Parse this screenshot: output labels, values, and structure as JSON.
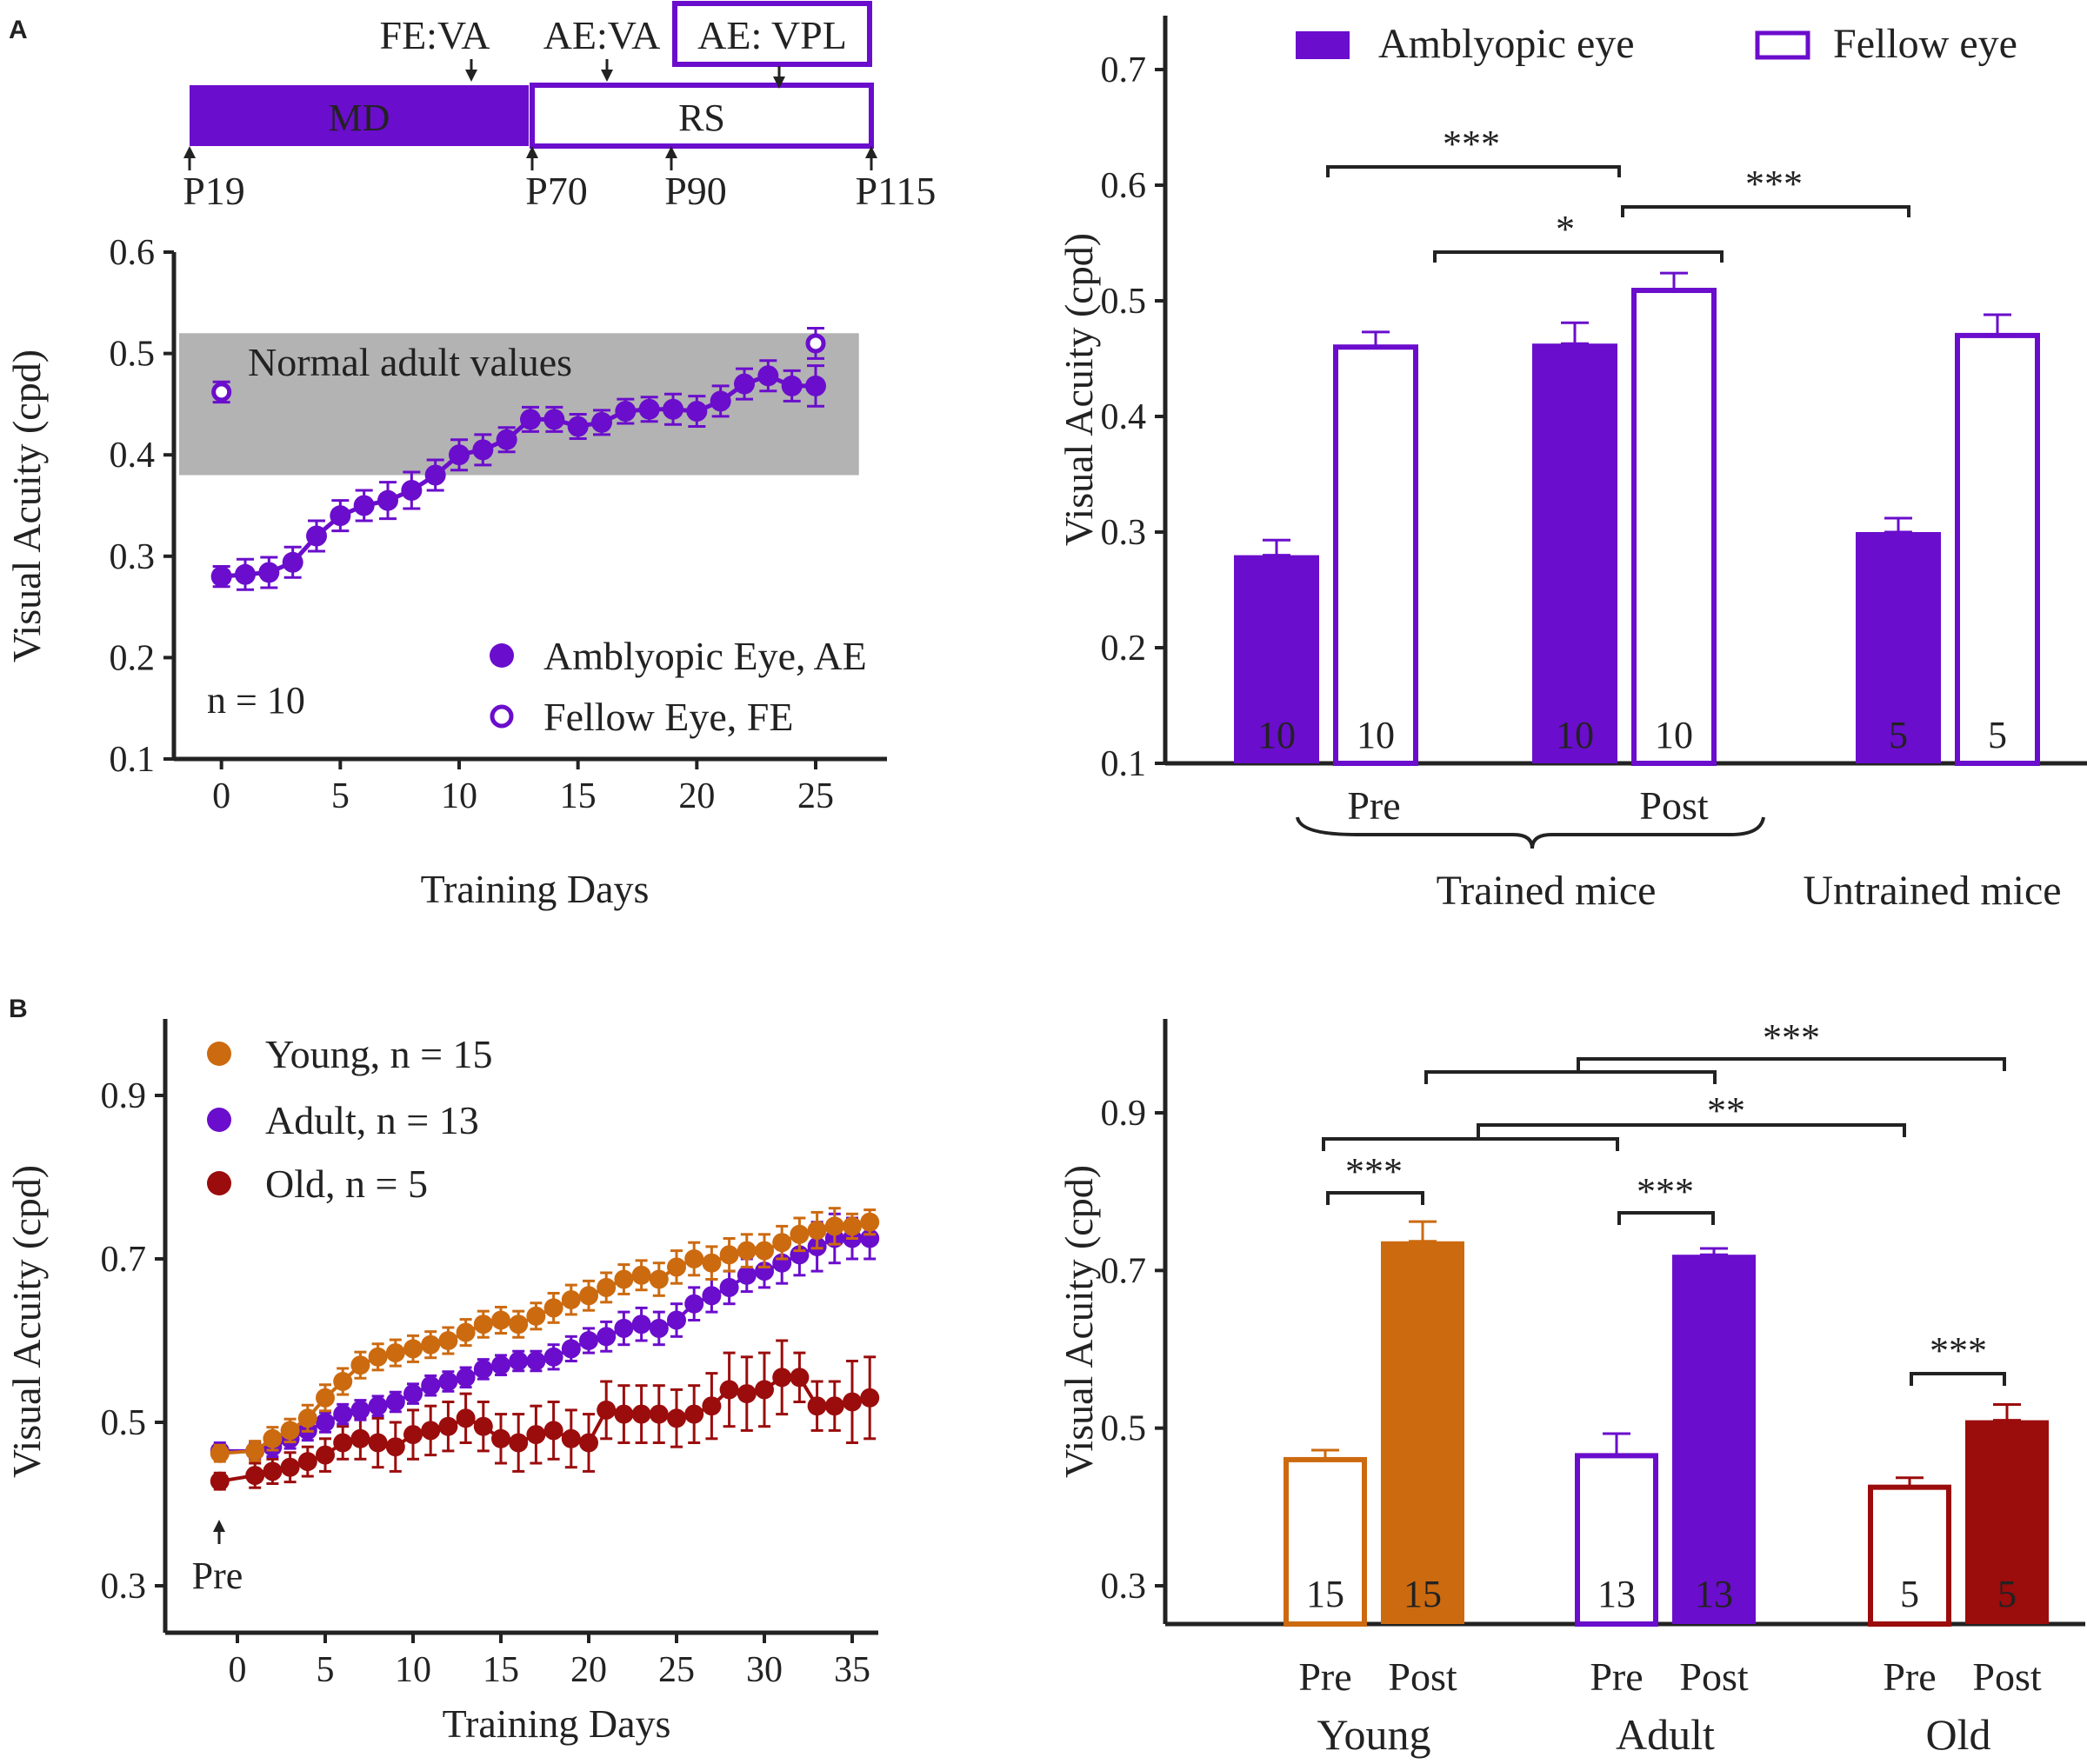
{
  "colors": {
    "purple": "#6a0dcc",
    "orange": "#cc6a10",
    "darkred": "#9b0c0c",
    "gray": "#b3b3b3",
    "ink": "#222222"
  },
  "panel_labels": {
    "a": "A",
    "b": "B"
  },
  "timeline": {
    "md_label": "MD",
    "rs_label": "RS",
    "fe_va": "FE:VA",
    "ae_va": "AE:VA",
    "ae_vpl": "AE: VPL",
    "ages": [
      "P19",
      "P70",
      "P90",
      "P115"
    ]
  },
  "chart_data": [
    {
      "id": "A_left",
      "type": "scatter",
      "xlabel": "Training Days",
      "ylabel": "Visual Acuity (cpd)",
      "xlim": [
        -2,
        28
      ],
      "ylim": [
        0.1,
        0.6
      ],
      "xticks": [
        "0",
        "5",
        "10",
        "15",
        "20",
        "25"
      ],
      "yticks": [
        "0.1",
        "0.2",
        "0.3",
        "0.4",
        "0.5",
        "0.6"
      ],
      "band": {
        "label": "Normal adult values",
        "y_low": 0.38,
        "y_high": 0.52
      },
      "n_label": "n = 10",
      "legend": [
        "Amblyopic Eye, AE",
        "Fellow Eye, FE"
      ],
      "series": [
        {
          "name": "Amblyopic Eye, AE",
          "x": [
            0,
            1,
            2,
            3,
            4,
            5,
            6,
            7,
            8,
            9,
            10,
            11,
            12,
            13,
            14,
            15,
            16,
            17,
            18,
            19,
            20,
            21,
            22,
            23,
            24,
            25
          ],
          "y": [
            0.28,
            0.282,
            0.284,
            0.294,
            0.32,
            0.34,
            0.35,
            0.355,
            0.365,
            0.38,
            0.4,
            0.405,
            0.415,
            0.435,
            0.435,
            0.428,
            0.432,
            0.443,
            0.445,
            0.445,
            0.443,
            0.453,
            0.47,
            0.478,
            0.468,
            0.468
          ],
          "err": [
            0.01,
            0.015,
            0.015,
            0.015,
            0.015,
            0.015,
            0.015,
            0.018,
            0.018,
            0.015,
            0.015,
            0.015,
            0.012,
            0.012,
            0.012,
            0.012,
            0.012,
            0.012,
            0.012,
            0.015,
            0.015,
            0.015,
            0.015,
            0.015,
            0.015,
            0.02
          ]
        },
        {
          "name": "Fellow Eye, FE",
          "x": [
            0,
            25
          ],
          "y": [
            0.462,
            0.51
          ],
          "err": [
            0.01,
            0.015
          ]
        }
      ]
    },
    {
      "id": "A_right",
      "type": "bar",
      "ylabel": "Visual Acuity (cpd)",
      "ylim": [
        0.1,
        0.75
      ],
      "yticks": [
        "0.1",
        "0.2",
        "0.3",
        "0.4",
        "0.5",
        "0.6",
        "0.7"
      ],
      "legend": [
        "Amblyopic eye",
        "Fellow eye"
      ],
      "groups": [
        {
          "label": "Pre",
          "ae": {
            "value": 0.28,
            "err": 0.013,
            "n": "10"
          },
          "fe": {
            "value": 0.46,
            "err": 0.013,
            "n": "10"
          }
        },
        {
          "label": "Post",
          "ae": {
            "value": 0.463,
            "err": 0.018,
            "n": "10"
          },
          "fe": {
            "value": 0.509,
            "err": 0.015,
            "n": "10"
          }
        },
        {
          "label": "",
          "ae": {
            "value": 0.3,
            "err": 0.012,
            "n": "5"
          },
          "fe": {
            "value": 0.47,
            "err": 0.018,
            "n": "5"
          }
        }
      ],
      "group_labels": {
        "trained": "Trained mice",
        "untrained": "Untrained mice"
      },
      "significance": [
        "***",
        "*",
        "***"
      ]
    },
    {
      "id": "B_left",
      "type": "scatter",
      "xlabel": "Training Days",
      "ylabel": "Visual Acuity (cpd)",
      "xlim": [
        -4,
        37
      ],
      "ylim": [
        0.27,
        0.98
      ],
      "xticks": [
        "0",
        "5",
        "10",
        "15",
        "20",
        "25",
        "30",
        "35"
      ],
      "yticks": [
        "0.3",
        "0.5",
        "0.7",
        "0.9"
      ],
      "pre_label": "Pre",
      "legend": [
        "Young, n = 15",
        "Adult, n = 13",
        "Old, n = 5"
      ],
      "series": [
        {
          "name": "Young",
          "x0": -1,
          "y0": 0.462,
          "y": [
            0.465,
            0.48,
            0.49,
            0.505,
            0.53,
            0.55,
            0.57,
            0.58,
            0.585,
            0.59,
            0.595,
            0.6,
            0.61,
            0.62,
            0.625,
            0.62,
            0.63,
            0.64,
            0.65,
            0.655,
            0.665,
            0.675,
            0.68,
            0.675,
            0.69,
            0.7,
            0.695,
            0.705,
            0.71,
            0.71,
            0.72,
            0.73,
            0.735,
            0.74,
            0.74,
            0.745
          ],
          "err": [
            0.012,
            0.014,
            0.014,
            0.016,
            0.016,
            0.016,
            0.016,
            0.016,
            0.016,
            0.016,
            0.016,
            0.016,
            0.016,
            0.016,
            0.016,
            0.016,
            0.016,
            0.018,
            0.018,
            0.018,
            0.018,
            0.018,
            0.018,
            0.02,
            0.02,
            0.02,
            0.02,
            0.02,
            0.02,
            0.02,
            0.02,
            0.02,
            0.022,
            0.022,
            0.015,
            0.015
          ]
        },
        {
          "name": "Adult",
          "x0": -1,
          "y0": 0.465,
          "y": [
            0.465,
            0.47,
            0.48,
            0.49,
            0.5,
            0.51,
            0.515,
            0.52,
            0.525,
            0.535,
            0.545,
            0.55,
            0.555,
            0.565,
            0.57,
            0.575,
            0.575,
            0.58,
            0.59,
            0.6,
            0.605,
            0.615,
            0.62,
            0.615,
            0.625,
            0.645,
            0.655,
            0.665,
            0.68,
            0.685,
            0.695,
            0.705,
            0.715,
            0.725,
            0.725,
            0.725
          ],
          "err": [
            0.01,
            0.012,
            0.012,
            0.012,
            0.012,
            0.012,
            0.012,
            0.012,
            0.012,
            0.012,
            0.012,
            0.012,
            0.012,
            0.012,
            0.012,
            0.012,
            0.012,
            0.015,
            0.015,
            0.015,
            0.018,
            0.02,
            0.02,
            0.02,
            0.02,
            0.02,
            0.02,
            0.02,
            0.02,
            0.02,
            0.025,
            0.025,
            0.03,
            0.03,
            0.025,
            0.025
          ]
        },
        {
          "name": "Old",
          "x0": -1,
          "y0": 0.428,
          "y": [
            0.435,
            0.44,
            0.445,
            0.452,
            0.46,
            0.475,
            0.48,
            0.475,
            0.47,
            0.485,
            0.49,
            0.495,
            0.505,
            0.495,
            0.48,
            0.475,
            0.485,
            0.49,
            0.48,
            0.475,
            0.515,
            0.51,
            0.51,
            0.51,
            0.505,
            0.51,
            0.52,
            0.54,
            0.535,
            0.54,
            0.555,
            0.555,
            0.52,
            0.52,
            0.525,
            0.53
          ],
          "err": [
            0.015,
            0.015,
            0.018,
            0.018,
            0.02,
            0.02,
            0.025,
            0.03,
            0.03,
            0.03,
            0.03,
            0.03,
            0.03,
            0.03,
            0.03,
            0.035,
            0.035,
            0.035,
            0.035,
            0.035,
            0.035,
            0.035,
            0.035,
            0.035,
            0.035,
            0.035,
            0.04,
            0.045,
            0.045,
            0.045,
            0.045,
            0.03,
            0.03,
            0.03,
            0.05,
            0.05
          ]
        }
      ]
    },
    {
      "id": "B_right",
      "type": "bar",
      "ylabel": "Visual Acuity (cpd)",
      "ylim": [
        0.25,
        0.98
      ],
      "yticks": [
        "0.3",
        "0.5",
        "0.7",
        "0.9"
      ],
      "groups": [
        {
          "label": "Young",
          "color": "#cc6a10",
          "pre": {
            "value": 0.46,
            "err": 0.012,
            "n": "15"
          },
          "post": {
            "value": 0.737,
            "err": 0.025,
            "n": "15"
          }
        },
        {
          "label": "Adult",
          "color": "#6a0dcc",
          "pre": {
            "value": 0.465,
            "err": 0.028,
            "n": "13"
          },
          "post": {
            "value": 0.72,
            "err": 0.008,
            "n": "13"
          }
        },
        {
          "label": "Old",
          "color": "#9b0c0c",
          "pre": {
            "value": 0.425,
            "err": 0.012,
            "n": "5"
          },
          "post": {
            "value": 0.51,
            "err": 0.02,
            "n": "5"
          }
        }
      ],
      "bar_labels": [
        "Pre",
        "Post"
      ],
      "significance": [
        "***",
        "**",
        "***",
        "***",
        "***"
      ]
    }
  ]
}
